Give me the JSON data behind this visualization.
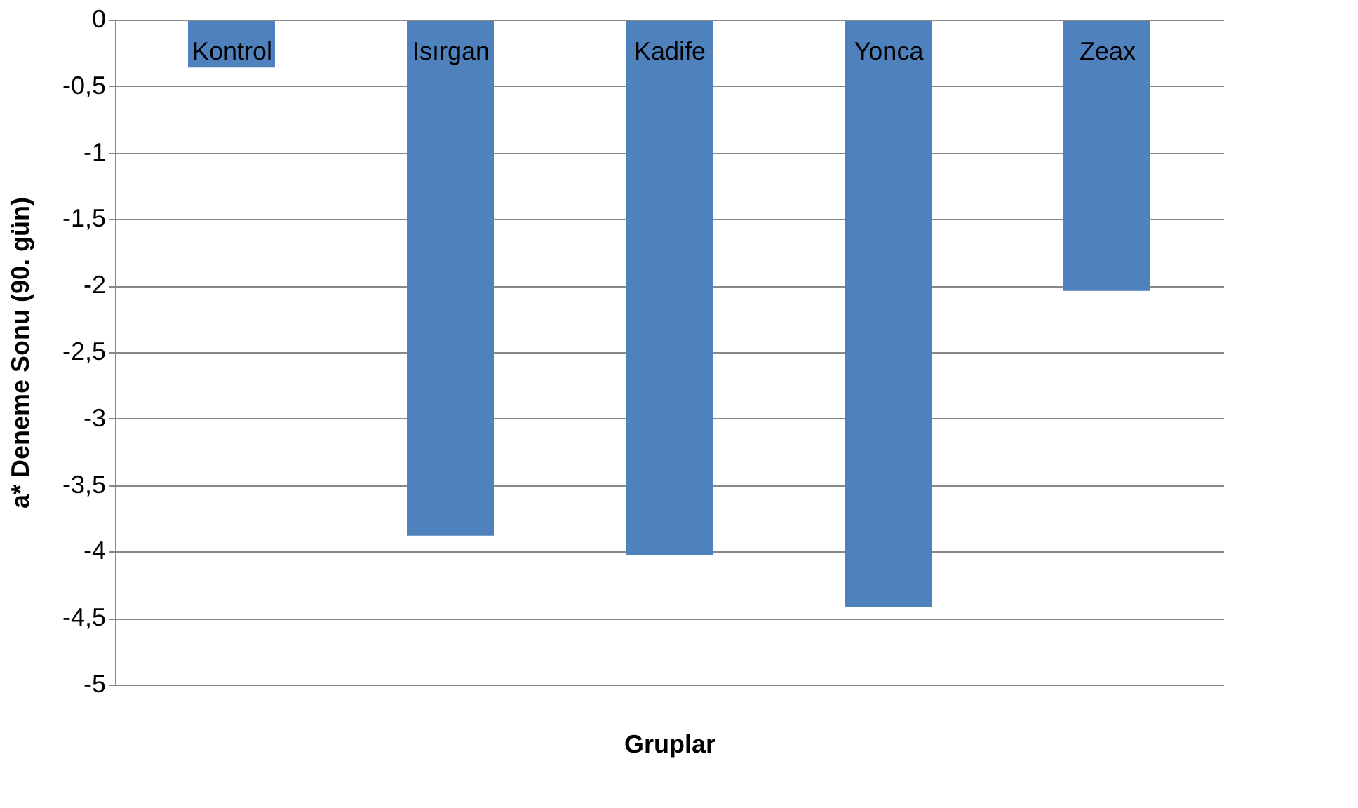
{
  "chart_data": {
    "type": "bar",
    "xlabel": "Gruplar",
    "ylabel": "a* Deneme Sonu (90. gün)",
    "categories": [
      "Kontrol",
      "Isırgan",
      "Kadife",
      "Yonca",
      "Zeax"
    ],
    "values": [
      -0.36,
      -3.88,
      -4.03,
      -4.42,
      -2.04
    ],
    "color": "#4f81bd",
    "ylim": [
      -5,
      0
    ],
    "yticks": [
      0,
      {
        "value": -0.5,
        "label": "-0,5"
      },
      -1,
      {
        "value": -1.5,
        "label": "-1,5"
      },
      -2,
      {
        "value": -2.5,
        "label": "-2,5"
      },
      -3,
      {
        "value": -3.5,
        "label": "-3,5"
      },
      -4,
      {
        "value": -4.5,
        "label": "-4,5"
      },
      -5
    ],
    "grid": "y"
  }
}
